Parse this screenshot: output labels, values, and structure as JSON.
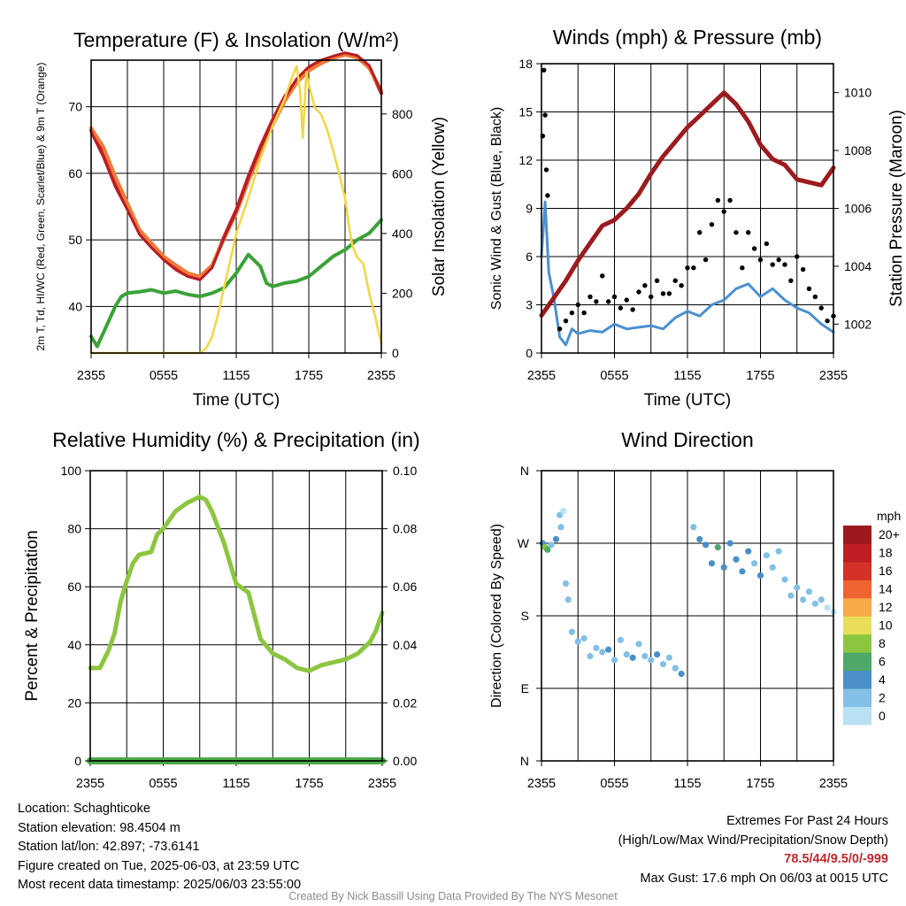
{
  "chart_data": [
    {
      "type": "line",
      "title": "Temperature (F) & Insolation (W/m²)",
      "xlabel": "Time (UTC)",
      "ylabel_left": "2m T, Td, HI/WC (Red, Green, Scarlet/Blue) & 9m T (Orange)",
      "ylabel_right": "Solar Insolation (Yellow)",
      "x_ticks": [
        "2355",
        "0555",
        "1155",
        "1755",
        "2355"
      ],
      "ylim_left": [
        33,
        77
      ],
      "yticks_left": [
        40,
        50,
        60,
        70
      ],
      "ylim_right": [
        0,
        980
      ],
      "yticks_right": [
        0,
        200,
        400,
        600,
        800
      ],
      "grid": true,
      "series": [
        {
          "name": "2m T",
          "color": "#c8252b",
          "axis": "left",
          "x": [
            0,
            1,
            2,
            3,
            4,
            5,
            6,
            7,
            8,
            9,
            10,
            11,
            12,
            13,
            14,
            15,
            16,
            17,
            18,
            19,
            20,
            21,
            22,
            23,
            24
          ],
          "y": [
            66.5,
            63,
            58.5,
            55,
            51,
            49,
            47.3,
            45.8,
            44.8,
            44.2,
            46,
            50.5,
            54.5,
            59.5,
            64,
            68,
            71.5,
            74,
            75.8,
            76.8,
            77.5,
            78,
            77.6,
            76,
            72
          ]
        },
        {
          "name": "9m T",
          "color": "#f07a3a",
          "axis": "left",
          "x": [
            0,
            1,
            2,
            3,
            4,
            5,
            6,
            7,
            8,
            9,
            10,
            11,
            12,
            13,
            14,
            15,
            16,
            17,
            18,
            19,
            20,
            21,
            22,
            23,
            24
          ],
          "y": [
            66.8,
            64,
            59.5,
            55.5,
            51.5,
            49.5,
            47.5,
            46.2,
            45,
            44.5,
            46.2,
            50.2,
            54,
            58.8,
            63.2,
            67.2,
            70.8,
            73.6,
            75.4,
            76.5,
            77.3,
            77.8,
            77.4,
            75.8,
            72.4
          ]
        },
        {
          "name": "HI/WC",
          "color": "#b81d24",
          "axis": "left",
          "x": [
            0,
            1,
            2,
            3,
            4,
            5,
            6,
            7,
            8,
            9,
            10,
            11,
            12,
            13,
            14,
            15,
            16,
            17,
            18,
            19,
            20,
            21,
            22,
            23,
            24
          ],
          "y": [
            66.2,
            62.5,
            58,
            54.5,
            50.8,
            48.8,
            47,
            45.5,
            44.5,
            44,
            45.8,
            50.3,
            54.3,
            59.3,
            63.8,
            67.8,
            71.3,
            74.2,
            76,
            77,
            77.6,
            78.1,
            77.7,
            76.2,
            72.2
          ]
        },
        {
          "name": "2m Td",
          "color": "#3aa238",
          "axis": "left",
          "x": [
            0,
            0.5,
            1,
            1.5,
            2,
            2.5,
            3,
            4,
            5,
            6,
            7,
            8,
            9,
            10,
            11,
            12,
            13,
            14,
            14.5,
            15,
            16,
            17,
            18,
            19,
            20,
            21,
            22,
            23,
            24
          ],
          "y": [
            35.5,
            34,
            36,
            38,
            40,
            41.5,
            42,
            42.2,
            42.5,
            42,
            42.3,
            41.8,
            41.5,
            42,
            42.8,
            45,
            47.8,
            46,
            43.5,
            43,
            43.5,
            43.8,
            44.5,
            46,
            47.5,
            48.5,
            50,
            51,
            53
          ]
        },
        {
          "name": "Solar Insolation",
          "color": "#f3d641",
          "axis": "right",
          "x": [
            0,
            9,
            9.5,
            10,
            10.5,
            11,
            11.5,
            12,
            13,
            14,
            15,
            16,
            16.5,
            17,
            17.3,
            17.5,
            17.8,
            18,
            18.5,
            19,
            19.5,
            20,
            20.5,
            21,
            21.3,
            21.6,
            22,
            22.5,
            23,
            23.5,
            24
          ],
          "y": [
            0,
            0,
            15,
            55,
            130,
            220,
            310,
            400,
            520,
            650,
            760,
            850,
            910,
            960,
            870,
            720,
            940,
            900,
            820,
            800,
            750,
            680,
            600,
            520,
            430,
            360,
            320,
            300,
            200,
            120,
            30
          ]
        }
      ]
    },
    {
      "type": "line",
      "title": "Winds (mph) & Pressure (mb)",
      "xlabel": "Time (UTC)",
      "ylabel_left": "Sonic Wind & Gust (Blue, Black)",
      "ylabel_right": "Station Pressure (Maroon)",
      "x_ticks": [
        "2355",
        "0555",
        "1155",
        "1755",
        "2355"
      ],
      "ylim_left": [
        0,
        18
      ],
      "yticks_left": [
        0,
        3,
        6,
        9,
        12,
        15,
        18
      ],
      "ylim_right": [
        1001.0,
        1011.0
      ],
      "yticks_right": [
        1002,
        1004,
        1006,
        1008,
        1010
      ],
      "grid": true,
      "series": [
        {
          "name": "Sonic Wind",
          "color": "#4a90d2",
          "axis": "left",
          "x": [
            0,
            0.3,
            0.6,
            1,
            1.5,
            2,
            2.5,
            3,
            4,
            5,
            6,
            7,
            8,
            9,
            10,
            11,
            12,
            13,
            14,
            15,
            16,
            17,
            18,
            19,
            20,
            21,
            22,
            23,
            24
          ],
          "y": [
            6,
            9.4,
            5,
            3.5,
            1,
            0.5,
            1.5,
            1.2,
            1.4,
            1.3,
            1.8,
            1.5,
            1.6,
            1.7,
            1.5,
            2.2,
            2.6,
            2.3,
            3,
            3.3,
            4,
            4.3,
            3.5,
            4,
            3.3,
            2.8,
            2.5,
            1.8,
            1.3
          ]
        },
        {
          "name": "Gust",
          "type": "scatter",
          "color": "#000000",
          "axis": "left",
          "x": [
            0.1,
            0.2,
            0.3,
            0.4,
            0.5,
            1.5,
            2,
            2.5,
            3,
            3.5,
            4,
            4.5,
            5,
            5.5,
            6,
            6.5,
            7,
            7.5,
            8,
            8.5,
            9,
            9.5,
            10,
            10.5,
            11,
            11.5,
            12,
            12.5,
            13,
            13.5,
            14,
            14.5,
            15,
            15.5,
            16,
            16.5,
            17,
            17.5,
            18,
            18.5,
            19,
            19.5,
            20,
            20.5,
            21,
            21.5,
            22,
            22.5,
            23,
            23.5,
            24
          ],
          "y": [
            13.5,
            17.6,
            14.8,
            11.4,
            9.8,
            1.5,
            2,
            2.5,
            3,
            2.5,
            3.5,
            3.2,
            4.8,
            3.2,
            3.5,
            2.8,
            3.3,
            2.7,
            3.8,
            4.2,
            3.5,
            4.5,
            3.7,
            3.7,
            4.5,
            4.2,
            5.3,
            5.3,
            7.5,
            5.8,
            8,
            9.5,
            8.8,
            9.5,
            7.5,
            5.3,
            7.5,
            6.5,
            5.8,
            6.8,
            5.5,
            5.8,
            5.5,
            4.5,
            6,
            5.2,
            4,
            3.5,
            2.8,
            2,
            2.3
          ]
        },
        {
          "name": "Station Pressure",
          "color": "#9b1b1e",
          "axis": "right",
          "x": [
            0,
            1,
            2,
            3,
            4,
            5,
            6,
            7,
            8,
            9,
            10,
            11,
            12,
            13,
            14,
            15,
            16,
            17,
            18,
            19,
            20,
            21,
            22,
            23,
            24
          ],
          "y": [
            1002.3,
            1002.9,
            1003.5,
            1004.2,
            1004.8,
            1005.4,
            1005.6,
            1006.0,
            1006.5,
            1007.2,
            1007.8,
            1008.3,
            1008.8,
            1009.2,
            1009.6,
            1010.0,
            1009.6,
            1009.0,
            1008.2,
            1007.7,
            1007.5,
            1007.0,
            1006.9,
            1006.8,
            1007.4
          ]
        }
      ]
    },
    {
      "type": "line",
      "title": "Relative Humidity (%) & Precipitation (in)",
      "xlabel": "",
      "ylabel_left": "Percent & Precipitation",
      "x_ticks": [
        "2355",
        "0555",
        "1155",
        "1755",
        "2355"
      ],
      "ylim_left": [
        0,
        100
      ],
      "yticks_left": [
        0,
        20,
        40,
        60,
        80,
        100
      ],
      "ylim_right": [
        0,
        0.1
      ],
      "yticks_right": [
        "0.00",
        "0.02",
        "0.04",
        "0.06",
        "0.08",
        "0.10"
      ],
      "grid": true,
      "series": [
        {
          "name": "Relative Humidity",
          "color": "#8cc63f",
          "axis": "left",
          "x": [
            0,
            0.8,
            1.5,
            2,
            2.5,
            3,
            3.5,
            4,
            5,
            5.5,
            6,
            7,
            8,
            9,
            9.5,
            10,
            11,
            11.5,
            12,
            13,
            13.5,
            14,
            15,
            16,
            17,
            18,
            19,
            20,
            21,
            22,
            23,
            23.5,
            24
          ],
          "y": [
            32,
            32,
            38,
            44,
            55,
            62,
            68,
            71,
            72,
            78,
            80,
            86,
            89,
            91,
            90,
            86,
            75,
            68,
            61,
            58,
            50,
            42,
            37,
            35,
            32,
            31,
            33,
            34,
            35,
            37,
            41,
            45,
            51
          ]
        },
        {
          "name": "Precipitation",
          "color": "#4aa84a",
          "axis": "right",
          "x": [
            0,
            24
          ],
          "y": [
            0,
            0
          ]
        }
      ]
    },
    {
      "type": "scatter",
      "title": "Wind Direction",
      "ylabel": "Direction (Colored By Speed)",
      "x_ticks": [
        "2355",
        "0555",
        "1155",
        "1755",
        "2355"
      ],
      "y_ticks": [
        "N",
        "E",
        "S",
        "W",
        "N"
      ],
      "ylim": [
        0,
        360
      ],
      "grid": true,
      "colorbar": {
        "title": "mph",
        "labels": [
          "0",
          "2",
          "4",
          "6",
          "8",
          "10",
          "12",
          "14",
          "16",
          "18",
          "20+"
        ],
        "colors": [
          "#b8e2f4",
          "#82c0e6",
          "#4a8fc8",
          "#4da86a",
          "#8cc63f",
          "#e8de5a",
          "#f8a94a",
          "#ef6330",
          "#d43228",
          "#be1e24",
          "#9c1a1e"
        ]
      },
      "points": [
        {
          "x": 0.1,
          "y": 270,
          "s": 4
        },
        {
          "x": 0.3,
          "y": 265,
          "s": 7
        },
        {
          "x": 0.5,
          "y": 262,
          "s": 5
        },
        {
          "x": 0.8,
          "y": 268,
          "s": 2
        },
        {
          "x": 1.2,
          "y": 275,
          "s": 3
        },
        {
          "x": 1.5,
          "y": 305,
          "s": 1
        },
        {
          "x": 1.8,
          "y": 310,
          "s": 0
        },
        {
          "x": 1.6,
          "y": 290,
          "s": 1
        },
        {
          "x": 2,
          "y": 220,
          "s": 1
        },
        {
          "x": 2.2,
          "y": 200,
          "s": 1
        },
        {
          "x": 2.5,
          "y": 160,
          "s": 2
        },
        {
          "x": 3,
          "y": 148,
          "s": 1
        },
        {
          "x": 3.5,
          "y": 152,
          "s": 2
        },
        {
          "x": 4,
          "y": 130,
          "s": 2
        },
        {
          "x": 4.5,
          "y": 140,
          "s": 1
        },
        {
          "x": 5,
          "y": 135,
          "s": 2
        },
        {
          "x": 5.5,
          "y": 138,
          "s": 3
        },
        {
          "x": 6,
          "y": 125,
          "s": 2
        },
        {
          "x": 6.5,
          "y": 150,
          "s": 1
        },
        {
          "x": 7,
          "y": 132,
          "s": 2
        },
        {
          "x": 7.5,
          "y": 128,
          "s": 3
        },
        {
          "x": 8,
          "y": 145,
          "s": 2
        },
        {
          "x": 8.5,
          "y": 130,
          "s": 1
        },
        {
          "x": 9,
          "y": 125,
          "s": 2
        },
        {
          "x": 9.5,
          "y": 132,
          "s": 3
        },
        {
          "x": 10,
          "y": 120,
          "s": 2
        },
        {
          "x": 10.5,
          "y": 128,
          "s": 1
        },
        {
          "x": 11,
          "y": 115,
          "s": 2
        },
        {
          "x": 11.5,
          "y": 108,
          "s": 3
        },
        {
          "x": 12.5,
          "y": 290,
          "s": 2
        },
        {
          "x": 13,
          "y": 275,
          "s": 3
        },
        {
          "x": 13.5,
          "y": 268,
          "s": 4
        },
        {
          "x": 14,
          "y": 245,
          "s": 3
        },
        {
          "x": 14.5,
          "y": 265,
          "s": 6
        },
        {
          "x": 15,
          "y": 240,
          "s": 3
        },
        {
          "x": 15.5,
          "y": 270,
          "s": 4
        },
        {
          "x": 16,
          "y": 250,
          "s": 3
        },
        {
          "x": 16.5,
          "y": 235,
          "s": 4
        },
        {
          "x": 17,
          "y": 260,
          "s": 3
        },
        {
          "x": 17.5,
          "y": 245,
          "s": 2
        },
        {
          "x": 18,
          "y": 230,
          "s": 3
        },
        {
          "x": 18.5,
          "y": 255,
          "s": 2
        },
        {
          "x": 19,
          "y": 240,
          "s": 2
        },
        {
          "x": 19.5,
          "y": 260,
          "s": 1
        },
        {
          "x": 20,
          "y": 225,
          "s": 2
        },
        {
          "x": 20.5,
          "y": 205,
          "s": 2
        },
        {
          "x": 21,
          "y": 215,
          "s": 1
        },
        {
          "x": 21.5,
          "y": 200,
          "s": 2
        },
        {
          "x": 22,
          "y": 210,
          "s": 1
        },
        {
          "x": 22.5,
          "y": 195,
          "s": 2
        },
        {
          "x": 23,
          "y": 200,
          "s": 1
        },
        {
          "x": 23.5,
          "y": 190,
          "s": 0
        },
        {
          "x": 24,
          "y": 185,
          "s": 0
        }
      ]
    }
  ],
  "info": {
    "location": "Location: Schaghticoke",
    "elevation": "Station elevation: 98.4504 m",
    "latlon": "Station lat/lon: 42.897; -73.6141",
    "created": "Figure created on Tue, 2025-06-03, at 23:59 UTC",
    "recent": "Most recent data timestamp: 2025/06/03 23:55:00"
  },
  "extremes": {
    "title": "Extremes For Past 24 Hours",
    "subtitle": "(High/Low/Max Wind/Precipitation/Snow Depth)",
    "values": "78.5/44/9.5/0/-999",
    "gust": "Max Gust: 17.6 mph On 06/03 at 0015 UTC"
  },
  "credit": "Created By Nick Bassill Using Data Provided By The NYS Mesonet"
}
